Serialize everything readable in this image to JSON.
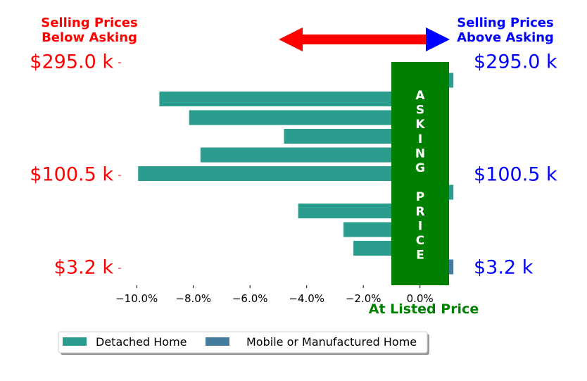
{
  "chart_data": {
    "type": "bar",
    "orientation": "horizontal",
    "xlim": [
      -10.9,
      1.2
    ],
    "x_ticks": [
      -10,
      -8,
      -6,
      -4,
      -2,
      0
    ],
    "x_tick_labels": [
      "−10.0%",
      "−8.0%",
      "−6.0%",
      "−4.0%",
      "−2.0%",
      "0.0%"
    ],
    "y_tick_labels_left": [
      "$295.0 k",
      "$100.5 k",
      "$3.2 k"
    ],
    "y_tick_labels_right": [
      "$295.0 k",
      "$100.5 k",
      "$3.2 k"
    ],
    "y_tick_rows": [
      0,
      6,
      11
    ],
    "series": [
      {
        "name": "Detached Home",
        "color": "#2a9d8f"
      },
      {
        "name": "Mobile or Manufactured Home",
        "color": "#457b9d"
      }
    ],
    "bars": [
      {
        "row": 0,
        "value": 1.18,
        "series": 0
      },
      {
        "row": 1,
        "value": -9.2,
        "series": 0
      },
      {
        "row": 2,
        "value": -8.15,
        "series": 0
      },
      {
        "row": 3,
        "value": -4.8,
        "series": 0
      },
      {
        "row": 4,
        "value": -7.75,
        "series": 0
      },
      {
        "row": 5,
        "value": -9.95,
        "series": 0
      },
      {
        "row": 6,
        "value": 1.18,
        "series": 0
      },
      {
        "row": 7,
        "value": -4.3,
        "series": 0
      },
      {
        "row": 8,
        "value": -2.7,
        "series": 0
      },
      {
        "row": 9,
        "value": -2.35,
        "series": 0
      },
      {
        "row": 10,
        "value": 1.18,
        "series": 1
      }
    ],
    "annotations": {
      "below_label": "Selling Prices\nBelow Asking",
      "above_label": "Selling Prices\nAbove Asking",
      "asking_price_label": "ASKING\n\nPRICE",
      "at_listed_price": "At Listed Price"
    },
    "colors": {
      "below": "#ff0000",
      "above": "#0000ff",
      "asking_box": "#008000",
      "at_listed": "#008000"
    },
    "legend_position": "bottom-left"
  }
}
